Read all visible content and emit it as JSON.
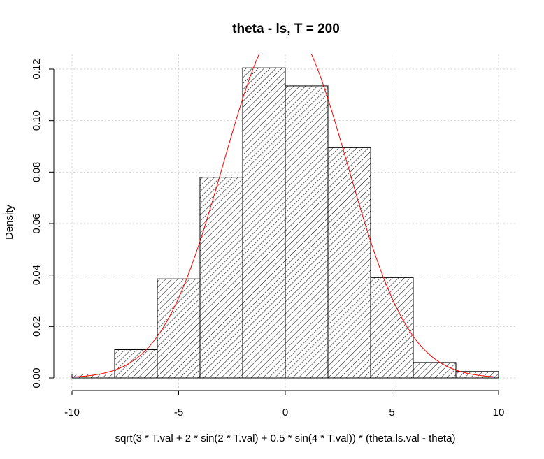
{
  "chart_data": {
    "type": "bar",
    "title": "theta - ls, T =  200",
    "xlabel": "sqrt(3 * T.val + 2 * sin(2 * T.val) + 0.5 * sin(4 * T.val)) * (theta.ls.val - theta)",
    "ylabel": "Density",
    "xlim": [
      -10,
      10
    ],
    "ylim": [
      0,
      0.12
    ],
    "xticks": [
      -10,
      -5,
      0,
      5,
      10
    ],
    "xtick_labels": [
      "-10",
      "-5",
      "0",
      "5",
      "10"
    ],
    "yticks": [
      0.0,
      0.02,
      0.04,
      0.06,
      0.08,
      0.1,
      0.12
    ],
    "ytick_labels": [
      "0.00",
      "0.02",
      "0.04",
      "0.06",
      "0.08",
      "0.10",
      "0.12"
    ],
    "bins": [
      {
        "from": -10,
        "to": -8,
        "density": 0.0015
      },
      {
        "from": -8,
        "to": -6,
        "density": 0.011
      },
      {
        "from": -6,
        "to": -4,
        "density": 0.0385
      },
      {
        "from": -4,
        "to": -2,
        "density": 0.078
      },
      {
        "from": -2,
        "to": 0,
        "density": 0.1205
      },
      {
        "from": 0,
        "to": 2,
        "density": 0.1135
      },
      {
        "from": 2,
        "to": 4,
        "density": 0.0895
      },
      {
        "from": 4,
        "to": 6,
        "density": 0.039
      },
      {
        "from": 6,
        "to": 8,
        "density": 0.006
      },
      {
        "from": 8,
        "to": 10,
        "density": 0.0025
      }
    ],
    "overlay_curve": {
      "kind": "normal-density",
      "mean": 0,
      "sd": 2.9,
      "color": "#ff0000"
    },
    "bar_fill": "diagonal-hatch",
    "grid": true
  }
}
